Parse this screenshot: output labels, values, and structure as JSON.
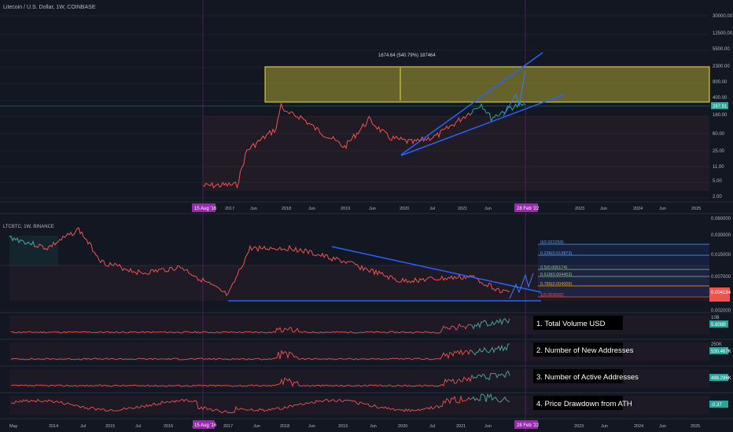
{
  "main_chart": {
    "title": "Litecoin / U.S. Dollar, 1W, COINBASE",
    "measure_label": "1674.64 (540.79%) 187464",
    "price_badge": "287.91",
    "price_scale": [
      "30000.00",
      "12500.00",
      "5500.00",
      "2300.00",
      "900.00",
      "400.00",
      "160.00",
      "60.00",
      "25.00",
      "11.00",
      "5.00",
      "2.00"
    ],
    "date_badge_left": "15 Aug '16",
    "date_badge_right": "28 Feb '22",
    "time_axis": [
      "2017",
      "Jun",
      "2018",
      "Jun",
      "2019",
      "Jun",
      "2020",
      "Jul",
      "2021",
      "Jun",
      "2023",
      "Jun",
      "2024",
      "Jun",
      "2025"
    ]
  },
  "ratio_chart": {
    "title": "LTCBTC, 1W, BINANCE",
    "price_scale": [
      "0.060000",
      "0.030000",
      "0.015000",
      "0.007000",
      "0.002000"
    ],
    "price_badge": "0.004134",
    "fib_levels": [
      "0(0.022259)",
      "0.236(0.013873)",
      "0.5(0.006174)",
      "0.618(0.004453)",
      "0.786(0.004009)",
      "1(0.003002)"
    ]
  },
  "indicators": [
    {
      "label": "1. Total Volume USD",
      "scale_top": "10B",
      "badge": "5.808B"
    },
    {
      "label": "2. Number of New Addresses",
      "scale_top": "250K",
      "badge": "530.467K"
    },
    {
      "label": "3. Number of Active Addresses",
      "scale_top": "",
      "badge": "488.296K"
    },
    {
      "label": "4. Price Drawdown from ATH",
      "scale_top": "",
      "badge": "-0.37"
    }
  ],
  "bottom_axis": {
    "labels": [
      "May",
      "2014",
      "Jul",
      "2015",
      "Jul",
      "2016",
      "Jul",
      "2017",
      "Jun",
      "2018",
      "Jun",
      "2019",
      "Jun",
      "2020",
      "Jul",
      "2021",
      "Jun",
      "2023",
      "Jun",
      "2024",
      "Jun",
      "2025"
    ],
    "date_badge_left": "15 Aug '16",
    "date_badge_right": "28 Feb '22"
  },
  "chart_data": {
    "type": "line",
    "title": "Litecoin / U.S. Dollar, 1W, COINBASE",
    "series": [
      {
        "name": "LTCUSD",
        "x": [
          "2016-08",
          "2017-01",
          "2017-03",
          "2017-05",
          "2017-08",
          "2017-11",
          "2017-12",
          "2018-01",
          "2018-04",
          "2018-07",
          "2018-10",
          "2019-01",
          "2019-06",
          "2019-10",
          "2020-03",
          "2020-08",
          "2021-01",
          "2021-05",
          "2021-07",
          "2021-11",
          "2022-02"
        ],
        "values": [
          3.8,
          4,
          4,
          25,
          45,
          80,
          300,
          180,
          150,
          80,
          50,
          30,
          130,
          50,
          38,
          55,
          140,
          300,
          140,
          250,
          287.91
        ]
      },
      {
        "name": "LTCBTC",
        "x": [
          "2016-08",
          "2017-05",
          "2017-12",
          "2018-06",
          "2019-06",
          "2020-03",
          "2021-05",
          "2022-02"
        ],
        "values": [
          0.0035,
          0.008,
          0.02,
          0.012,
          0.012,
          0.006,
          0.007,
          0.004134
        ]
      }
    ],
    "ylabel": "",
    "xlabel": "",
    "yscale": "log"
  }
}
